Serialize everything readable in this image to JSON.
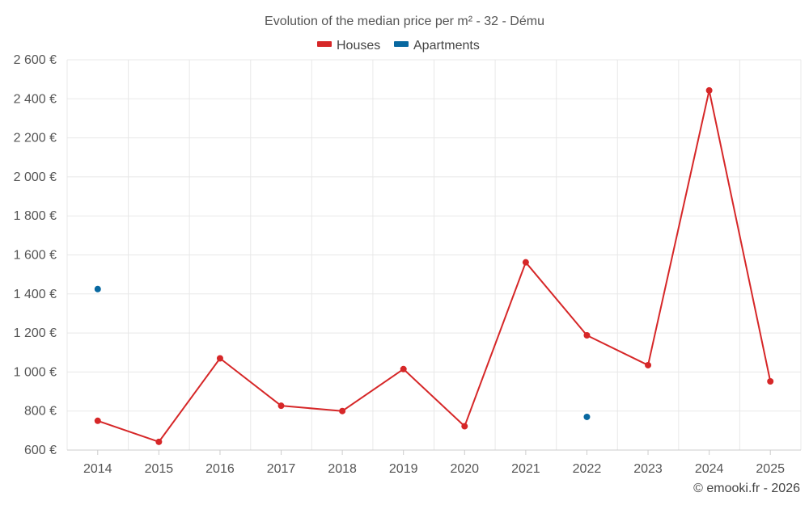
{
  "chart_data": {
    "type": "line",
    "title": "Evolution of the median price per m² - 32 - Dému",
    "xlabel": "",
    "ylabel": "",
    "categories": [
      "2014",
      "2015",
      "2016",
      "2017",
      "2018",
      "2019",
      "2020",
      "2021",
      "2022",
      "2023",
      "2024",
      "2025"
    ],
    "ylim": [
      600,
      2600
    ],
    "y_ticks": [
      600,
      800,
      1000,
      1200,
      1400,
      1600,
      1800,
      2000,
      2200,
      2400,
      2600
    ],
    "y_tick_labels": [
      "600 €",
      "800 €",
      "1 000 €",
      "1 200 €",
      "1 400 €",
      "1 600 €",
      "1 800 €",
      "2 000 €",
      "2 200 €",
      "2 400 €",
      "2 600 €"
    ],
    "grid": true,
    "legend_position": "top-center",
    "series": [
      {
        "name": "Houses",
        "color": "#d62728",
        "values": [
          750,
          642,
          1070,
          827,
          800,
          1015,
          722,
          1562,
          1188,
          1035,
          2443,
          952
        ]
      },
      {
        "name": "Apartments",
        "color": "#0868a0",
        "values": [
          1425,
          null,
          null,
          null,
          null,
          null,
          null,
          null,
          770,
          null,
          null,
          null
        ]
      }
    ]
  },
  "copyright": "© emooki.fr - 2026"
}
